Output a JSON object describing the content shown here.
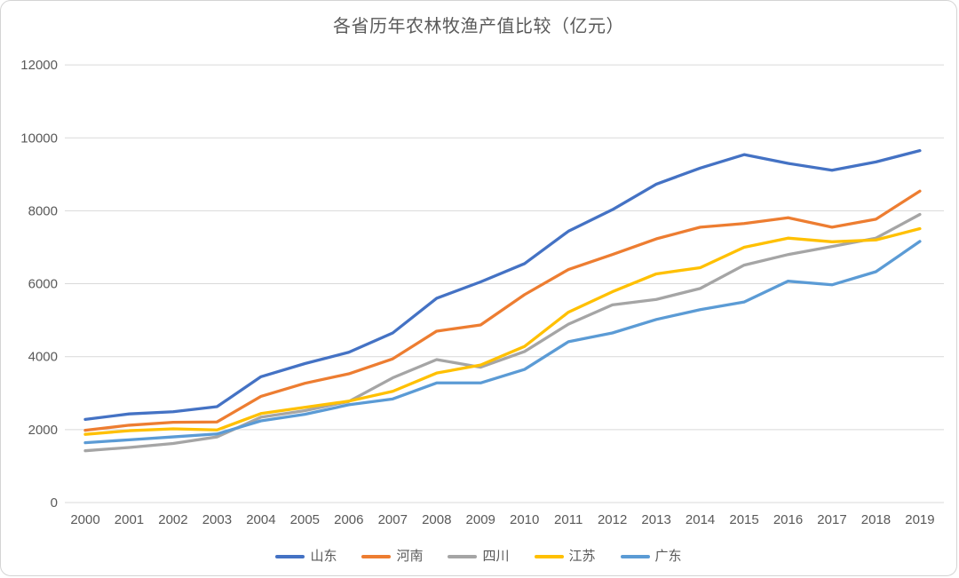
{
  "chart_data": {
    "type": "line",
    "title": "各省历年农林牧渔产值比较（亿元）",
    "xlabel": "",
    "ylabel": "",
    "x": [
      "2000",
      "2001",
      "2002",
      "2003",
      "2004",
      "2005",
      "2006",
      "2007",
      "2008",
      "2009",
      "2010",
      "2011",
      "2012",
      "2013",
      "2014",
      "2015",
      "2016",
      "2017",
      "2018",
      "2019"
    ],
    "y_ticks": [
      0,
      2000,
      4000,
      6000,
      8000,
      10000,
      12000
    ],
    "ylim": [
      0,
      12000
    ],
    "grid": "horizontal",
    "legend_position": "bottom",
    "series": [
      {
        "name": "山东",
        "color": "#4472C4",
        "values": [
          2280,
          2430,
          2490,
          2630,
          3450,
          3810,
          4120,
          4650,
          5600,
          6050,
          6550,
          7440,
          8030,
          8730,
          9170,
          9540,
          9300,
          9110,
          9340,
          9650
        ]
      },
      {
        "name": "河南",
        "color": "#ED7D31",
        "values": [
          1980,
          2120,
          2200,
          2210,
          2910,
          3270,
          3530,
          3940,
          4700,
          4870,
          5700,
          6390,
          6800,
          7230,
          7550,
          7650,
          7810,
          7550,
          7770,
          8540
        ]
      },
      {
        "name": "四川",
        "color": "#A5A5A5",
        "values": [
          1420,
          1510,
          1620,
          1800,
          2340,
          2520,
          2770,
          3420,
          3920,
          3710,
          4140,
          4890,
          5420,
          5570,
          5870,
          6510,
          6800,
          7020,
          7250,
          7900
        ]
      },
      {
        "name": "江苏",
        "color": "#FFC000",
        "values": [
          1870,
          1970,
          2020,
          1990,
          2440,
          2610,
          2780,
          3050,
          3550,
          3770,
          4280,
          5220,
          5780,
          6270,
          6440,
          7000,
          7250,
          7150,
          7200,
          7510
        ]
      },
      {
        "name": "广东",
        "color": "#5B9BD5",
        "values": [
          1640,
          1720,
          1800,
          1880,
          2240,
          2420,
          2680,
          2840,
          3280,
          3280,
          3650,
          4410,
          4650,
          5020,
          5290,
          5500,
          6070,
          5970,
          6330,
          7160
        ]
      }
    ]
  },
  "style": {
    "gridline_color": "#D9D9D9",
    "axis_text_color": "#595959",
    "title_color": "#595959",
    "line_width": 3.3,
    "tick_font_size": 15
  }
}
